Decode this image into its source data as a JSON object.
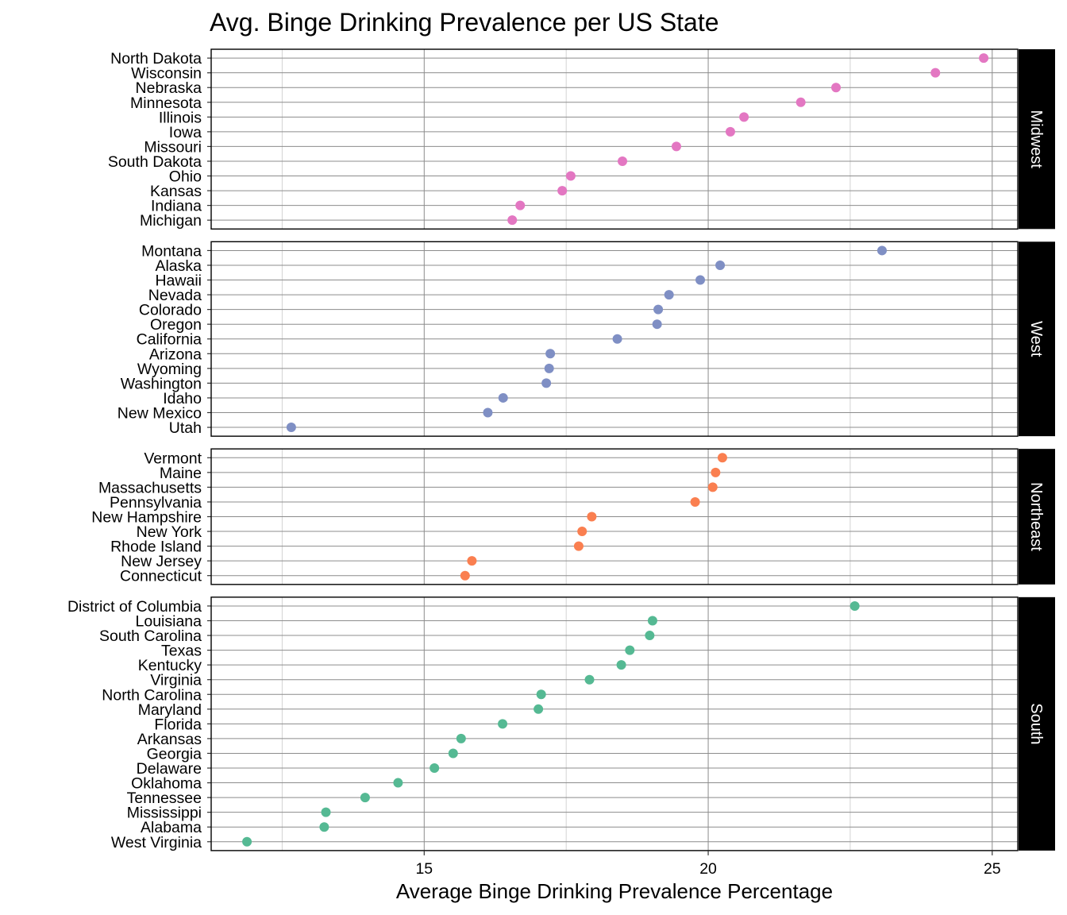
{
  "chart_data": {
    "type": "scatter",
    "title": "Avg. Binge Drinking Prevalence per US State",
    "xlabel": "Average Binge Drinking Prevalence Percentage",
    "ylabel": "",
    "xlim": [
      11.25,
      25.45
    ],
    "x_ticks": [
      15,
      20,
      25
    ],
    "x_minor_ticks": [
      12.5,
      17.5,
      22.5
    ],
    "grid": true,
    "legend": "none",
    "facets": [
      {
        "name": "Midwest",
        "color": "#E377C2",
        "states": [
          "North Dakota",
          "Wisconsin",
          "Nebraska",
          "Minnesota",
          "Illinois",
          "Iowa",
          "Missouri",
          "South Dakota",
          "Ohio",
          "Kansas",
          "Indiana",
          "Michigan"
        ],
        "values": [
          24.85,
          24.0,
          22.25,
          21.63,
          20.63,
          20.39,
          19.44,
          18.49,
          17.58,
          17.43,
          16.69,
          16.55
        ]
      },
      {
        "name": "West",
        "color": "#7F8FC4",
        "states": [
          "Montana",
          "Alaska",
          "Hawaii",
          "Nevada",
          "Colorado",
          "Oregon",
          "California",
          "Arizona",
          "Wyoming",
          "Washington",
          "Idaho",
          "New Mexico",
          "Utah"
        ],
        "values": [
          23.06,
          20.21,
          19.86,
          19.31,
          19.12,
          19.1,
          18.4,
          17.22,
          17.2,
          17.15,
          16.39,
          16.12,
          12.66
        ]
      },
      {
        "name": "Northeast",
        "color": "#FA7F50",
        "states": [
          "Vermont",
          "Maine",
          "Massachusetts",
          "Pennsylvania",
          "New Hampshire",
          "New York",
          "Rhode Island",
          "New Jersey",
          "Connecticut"
        ],
        "values": [
          20.25,
          20.13,
          20.08,
          19.77,
          17.95,
          17.78,
          17.72,
          15.84,
          15.72
        ]
      },
      {
        "name": "South",
        "color": "#55B993",
        "states": [
          "District of Columbia",
          "Louisiana",
          "South Carolina",
          "Texas",
          "Kentucky",
          "Virginia",
          "North Carolina",
          "Maryland",
          "Florida",
          "Arkansas",
          "Georgia",
          "Delaware",
          "Oklahoma",
          "Tennessee",
          "Mississippi",
          "Alabama",
          "West Virginia"
        ],
        "values": [
          22.58,
          19.02,
          18.97,
          18.62,
          18.47,
          17.91,
          17.06,
          17.01,
          16.38,
          15.65,
          15.51,
          15.18,
          14.54,
          13.96,
          13.27,
          13.24,
          11.88
        ]
      }
    ]
  }
}
